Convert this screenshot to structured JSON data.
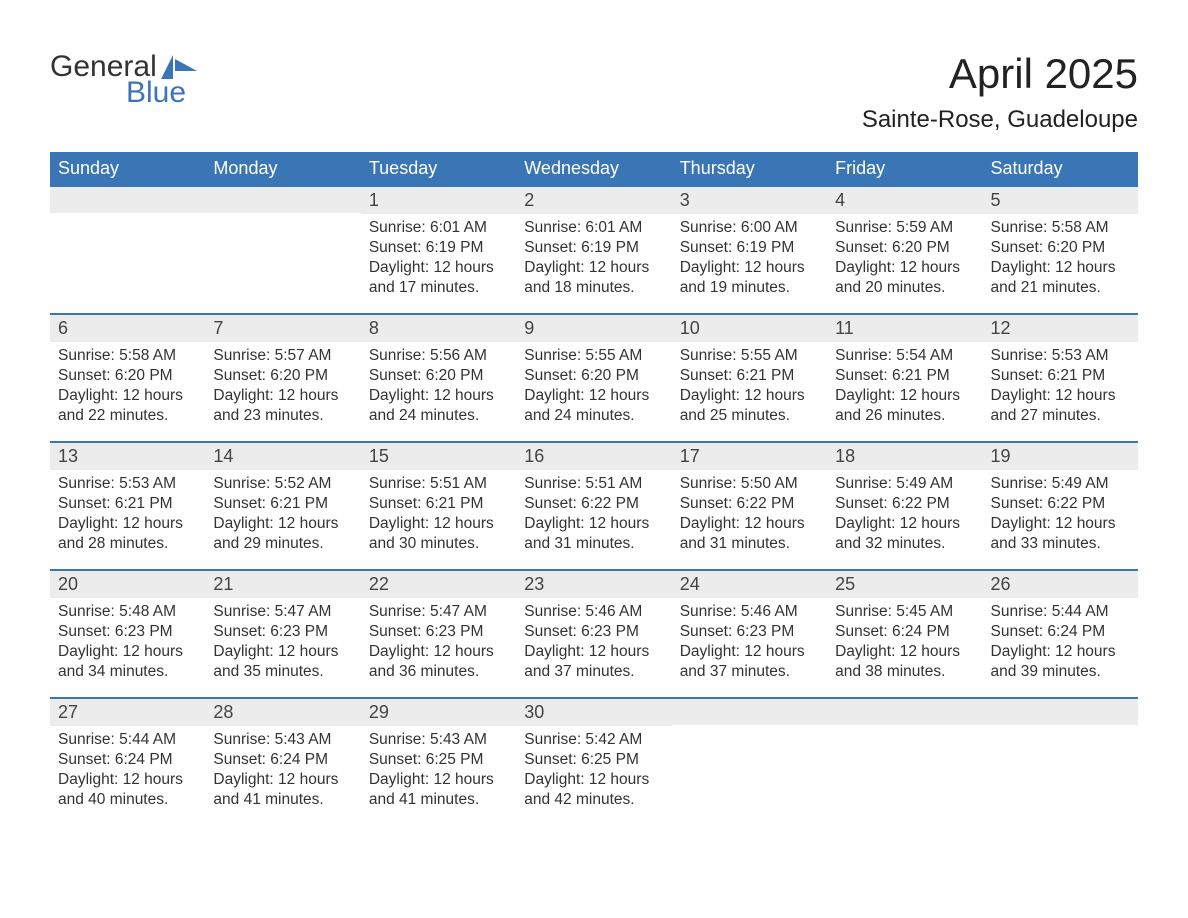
{
  "logo": {
    "text1": "General",
    "text2": "Blue",
    "icon_color": "#3a76b6"
  },
  "title": "April 2025",
  "location": "Sainte-Rose, Guadeloupe",
  "colors": {
    "header_bg": "#3a76b6",
    "header_text": "#ffffff",
    "daynum_bg": "#ececec",
    "daynum_border": "#3a76b6",
    "body_text": "#333333",
    "page_bg": "#ffffff"
  },
  "weekdays": [
    "Sunday",
    "Monday",
    "Tuesday",
    "Wednesday",
    "Thursday",
    "Friday",
    "Saturday"
  ],
  "layout": {
    "rows": 5,
    "cols": 7,
    "leading_blanks": 2,
    "days_in_month": 30
  },
  "days": {
    "1": {
      "sunrise": "6:01 AM",
      "sunset": "6:19 PM",
      "daylight": "12 hours and 17 minutes."
    },
    "2": {
      "sunrise": "6:01 AM",
      "sunset": "6:19 PM",
      "daylight": "12 hours and 18 minutes."
    },
    "3": {
      "sunrise": "6:00 AM",
      "sunset": "6:19 PM",
      "daylight": "12 hours and 19 minutes."
    },
    "4": {
      "sunrise": "5:59 AM",
      "sunset": "6:20 PM",
      "daylight": "12 hours and 20 minutes."
    },
    "5": {
      "sunrise": "5:58 AM",
      "sunset": "6:20 PM",
      "daylight": "12 hours and 21 minutes."
    },
    "6": {
      "sunrise": "5:58 AM",
      "sunset": "6:20 PM",
      "daylight": "12 hours and 22 minutes."
    },
    "7": {
      "sunrise": "5:57 AM",
      "sunset": "6:20 PM",
      "daylight": "12 hours and 23 minutes."
    },
    "8": {
      "sunrise": "5:56 AM",
      "sunset": "6:20 PM",
      "daylight": "12 hours and 24 minutes."
    },
    "9": {
      "sunrise": "5:55 AM",
      "sunset": "6:20 PM",
      "daylight": "12 hours and 24 minutes."
    },
    "10": {
      "sunrise": "5:55 AM",
      "sunset": "6:21 PM",
      "daylight": "12 hours and 25 minutes."
    },
    "11": {
      "sunrise": "5:54 AM",
      "sunset": "6:21 PM",
      "daylight": "12 hours and 26 minutes."
    },
    "12": {
      "sunrise": "5:53 AM",
      "sunset": "6:21 PM",
      "daylight": "12 hours and 27 minutes."
    },
    "13": {
      "sunrise": "5:53 AM",
      "sunset": "6:21 PM",
      "daylight": "12 hours and 28 minutes."
    },
    "14": {
      "sunrise": "5:52 AM",
      "sunset": "6:21 PM",
      "daylight": "12 hours and 29 minutes."
    },
    "15": {
      "sunrise": "5:51 AM",
      "sunset": "6:21 PM",
      "daylight": "12 hours and 30 minutes."
    },
    "16": {
      "sunrise": "5:51 AM",
      "sunset": "6:22 PM",
      "daylight": "12 hours and 31 minutes."
    },
    "17": {
      "sunrise": "5:50 AM",
      "sunset": "6:22 PM",
      "daylight": "12 hours and 31 minutes."
    },
    "18": {
      "sunrise": "5:49 AM",
      "sunset": "6:22 PM",
      "daylight": "12 hours and 32 minutes."
    },
    "19": {
      "sunrise": "5:49 AM",
      "sunset": "6:22 PM",
      "daylight": "12 hours and 33 minutes."
    },
    "20": {
      "sunrise": "5:48 AM",
      "sunset": "6:23 PM",
      "daylight": "12 hours and 34 minutes."
    },
    "21": {
      "sunrise": "5:47 AM",
      "sunset": "6:23 PM",
      "daylight": "12 hours and 35 minutes."
    },
    "22": {
      "sunrise": "5:47 AM",
      "sunset": "6:23 PM",
      "daylight": "12 hours and 36 minutes."
    },
    "23": {
      "sunrise": "5:46 AM",
      "sunset": "6:23 PM",
      "daylight": "12 hours and 37 minutes."
    },
    "24": {
      "sunrise": "5:46 AM",
      "sunset": "6:23 PM",
      "daylight": "12 hours and 37 minutes."
    },
    "25": {
      "sunrise": "5:45 AM",
      "sunset": "6:24 PM",
      "daylight": "12 hours and 38 minutes."
    },
    "26": {
      "sunrise": "5:44 AM",
      "sunset": "6:24 PM",
      "daylight": "12 hours and 39 minutes."
    },
    "27": {
      "sunrise": "5:44 AM",
      "sunset": "6:24 PM",
      "daylight": "12 hours and 40 minutes."
    },
    "28": {
      "sunrise": "5:43 AM",
      "sunset": "6:24 PM",
      "daylight": "12 hours and 41 minutes."
    },
    "29": {
      "sunrise": "5:43 AM",
      "sunset": "6:25 PM",
      "daylight": "12 hours and 41 minutes."
    },
    "30": {
      "sunrise": "5:42 AM",
      "sunset": "6:25 PM",
      "daylight": "12 hours and 42 minutes."
    }
  },
  "labels": {
    "sunrise": "Sunrise:",
    "sunset": "Sunset:",
    "daylight": "Daylight:"
  }
}
